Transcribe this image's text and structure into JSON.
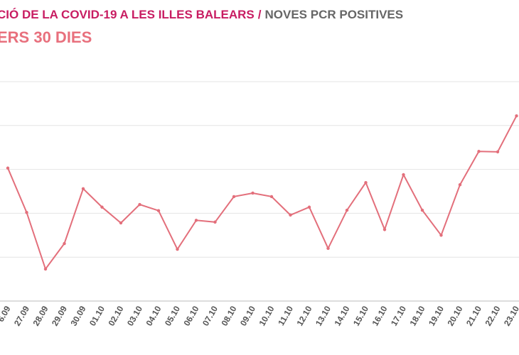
{
  "chart_data": {
    "type": "line",
    "title": "CIÓ DE LA COVID-19 A LES ILLES BALEARS",
    "title_separator": "/",
    "title_secondary": "NOVES PCR POSITIVES",
    "subtitle": "ERS 30 DIES",
    "categories": [
      "6.09",
      "27.09",
      "28.09",
      "29.09",
      "30.09",
      "01.10",
      "02.10",
      "03.10",
      "04.10",
      "05.10",
      "06.10",
      "07.10",
      "08.10",
      "09.10",
      "10.10",
      "11.10",
      "12.10",
      "13.10",
      "14.10",
      "15.10",
      "16.10",
      "17.10",
      "18.10",
      "19.10",
      "20.10",
      "21.10",
      "22.10",
      "23.10"
    ],
    "values": [
      3.03,
      2.02,
      0.73,
      1.31,
      2.56,
      2.14,
      1.78,
      2.2,
      2.06,
      1.18,
      1.84,
      1.8,
      2.38,
      2.46,
      2.38,
      1.96,
      2.14,
      1.2,
      2.07,
      2.7,
      1.63,
      2.88,
      2.07,
      1.5,
      2.65,
      3.41,
      3.4,
      4.22
    ],
    "color": "#e36f7b",
    "ylim": [
      0,
      5
    ],
    "ygrid": [
      0,
      1,
      2,
      3,
      4,
      5
    ],
    "grid": true
  }
}
